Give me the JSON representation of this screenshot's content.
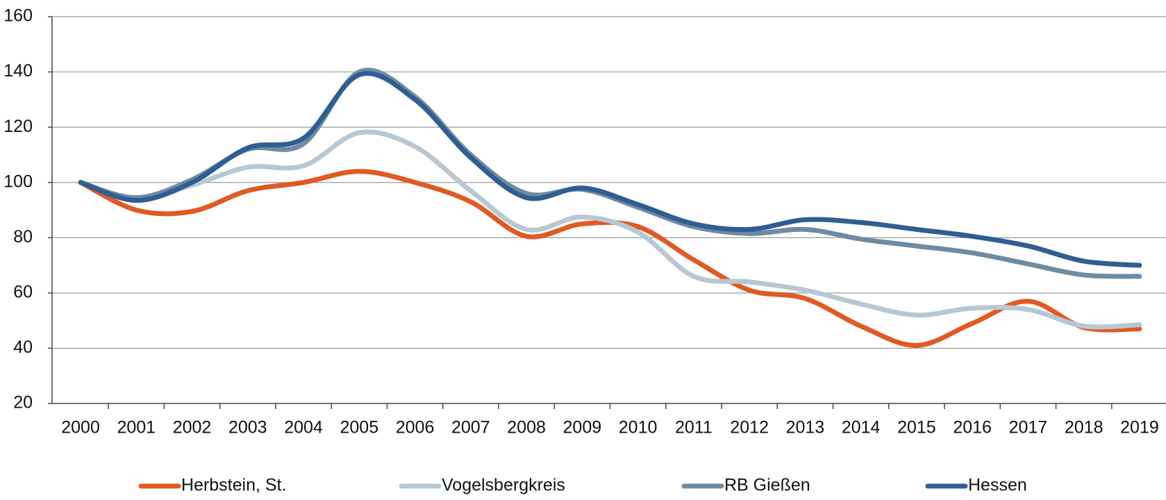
{
  "chart_data": {
    "type": "line",
    "categories": [
      "2000",
      "2001",
      "2002",
      "2003",
      "2004",
      "2005",
      "2006",
      "2007",
      "2008",
      "2009",
      "2010",
      "2011",
      "2012",
      "2013",
      "2014",
      "2015",
      "2016",
      "2017",
      "2018",
      "2019"
    ],
    "series": [
      {
        "name": "Herbstein, St.",
        "color": "#e05a22",
        "values": [
          100,
          90,
          89.5,
          97,
          100,
          104,
          100,
          93,
          80.5,
          85,
          84,
          72,
          61,
          58,
          48,
          41,
          49,
          57,
          47.5,
          47
        ]
      },
      {
        "name": "Vogelsbergkreis",
        "color": "#b8c7d3",
        "values": [
          100,
          94,
          99,
          105.5,
          106,
          118,
          113,
          97,
          83,
          87.5,
          82,
          66,
          64,
          61,
          56,
          52,
          54.5,
          54,
          48,
          48.5
        ]
      },
      {
        "name": "RB Gießen",
        "color": "#6f8ba2",
        "values": [
          100,
          94.5,
          101,
          112,
          114,
          140,
          131,
          110,
          96,
          97.5,
          91,
          84,
          81.5,
          83,
          79.5,
          77,
          74.5,
          70.5,
          66.5,
          66
        ]
      },
      {
        "name": "Hessen",
        "color": "#2f5d94",
        "values": [
          100,
          93.5,
          100,
          112.5,
          116,
          139,
          130,
          109,
          94.5,
          98,
          92,
          85,
          83,
          86.5,
          85.5,
          83,
          80.5,
          77,
          71.5,
          70
        ]
      }
    ],
    "ylim": [
      20,
      160
    ],
    "yticks": [
      20,
      40,
      60,
      80,
      100,
      120,
      140,
      160
    ],
    "grid": true,
    "legend": "bottom"
  }
}
